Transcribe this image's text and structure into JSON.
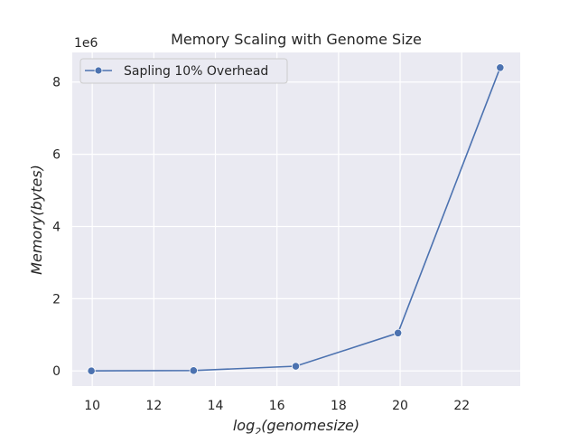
{
  "chart_data": {
    "type": "line",
    "title": "Memory Scaling with Genome Size",
    "xlabel_base": "log",
    "xlabel_sub": "2",
    "xlabel_rest": "(genomesize)",
    "ylabel": "Memory(bytes)",
    "y_offset_label": "1e6",
    "legend_position": "top-left",
    "grid": true,
    "colors": {
      "plot_bg": "#eaeaf2",
      "grid": "#ffffff",
      "series": "#4c72b0"
    },
    "xlim": [
      9.35,
      23.9
    ],
    "ylim": [
      -0.42,
      8.82
    ],
    "x_ticks": [
      10,
      12,
      14,
      16,
      18,
      20,
      22
    ],
    "x_tick_labels": [
      "10",
      "12",
      "14",
      "16",
      "18",
      "20",
      "22"
    ],
    "y_ticks": [
      0,
      2,
      4,
      6,
      8
    ],
    "y_tick_labels": [
      "0",
      "2",
      "4",
      "6",
      "8"
    ],
    "series": [
      {
        "name": "Sapling 10% Overhead",
        "x": [
          9.97,
          13.29,
          16.61,
          19.93,
          23.25
        ],
        "y": [
          0.0,
          0.01,
          0.13,
          1.05,
          8.4
        ]
      }
    ]
  }
}
